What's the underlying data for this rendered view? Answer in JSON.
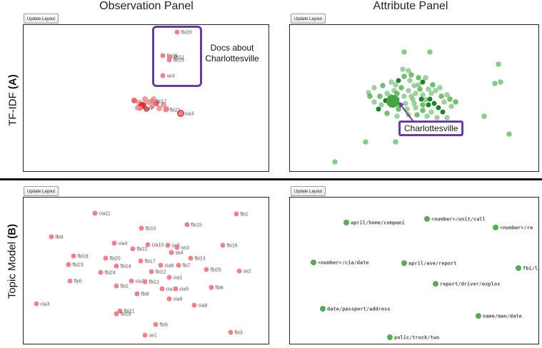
{
  "headers": {
    "observation": "Observation Panel",
    "attribute": "Attribute Panel"
  },
  "rows": {
    "tfidf": {
      "prefix": "TF-IDF ",
      "suffix": "(A)"
    },
    "topic": {
      "prefix": "Topic Model ",
      "suffix": "(B)"
    }
  },
  "buttons": {
    "update_layout": "Update Layout"
  },
  "annotations": {
    "docs_about_line1": "Docs about",
    "docs_about_line2": "Charlottesville",
    "callout": "Charlottesville"
  },
  "colors": {
    "doc_dot": "#e8848a",
    "doc_dot_dark": "#d9454b",
    "doc_highlight": "#e53030",
    "attr_light": "#7fc17f",
    "attr_mid": "#45a445",
    "attr_dark": "#137a1e",
    "attr_topic": "#5aa85a",
    "purple": "#6a3d9a"
  },
  "tfidf_obs_labels": [
    "fbi20",
    "fbi19",
    "fbi11",
    "fbi15",
    "se3",
    "fbi17",
    "cia7",
    "fbi21",
    "cia3"
  ],
  "topic_obs_labels": [
    "cia11",
    "fbi1",
    "fbi4",
    "fbi10",
    "fbi15",
    "cia4",
    "cia10",
    "se5",
    "se3",
    "fbi16",
    "fbi18",
    "fbi20",
    "fbi22",
    "se4",
    "fbi23",
    "fbi17",
    "cia6",
    "fbi7",
    "fbi13",
    "fbi14",
    "fbi24",
    "fbi12",
    "fbi25",
    "se2",
    "fbi5",
    "cia1",
    "cia2",
    "fbi2",
    "fbi11",
    "cia12",
    "cia5",
    "fbi6",
    "fbi8",
    "cia9",
    "cia8",
    "cia3",
    "fbi21",
    "fbi18",
    "fbi9",
    "se1",
    "fbi3"
  ],
  "topic_attr_labels": [
    "april/home/compani",
    "<number>/unit/call",
    "<number>/re",
    "<number>/cia/date",
    "april/ave/report",
    "fbi/li",
    "report/driver/explos",
    "date/passport/address",
    "name/man/date",
    "polic/truck/two"
  ]
}
